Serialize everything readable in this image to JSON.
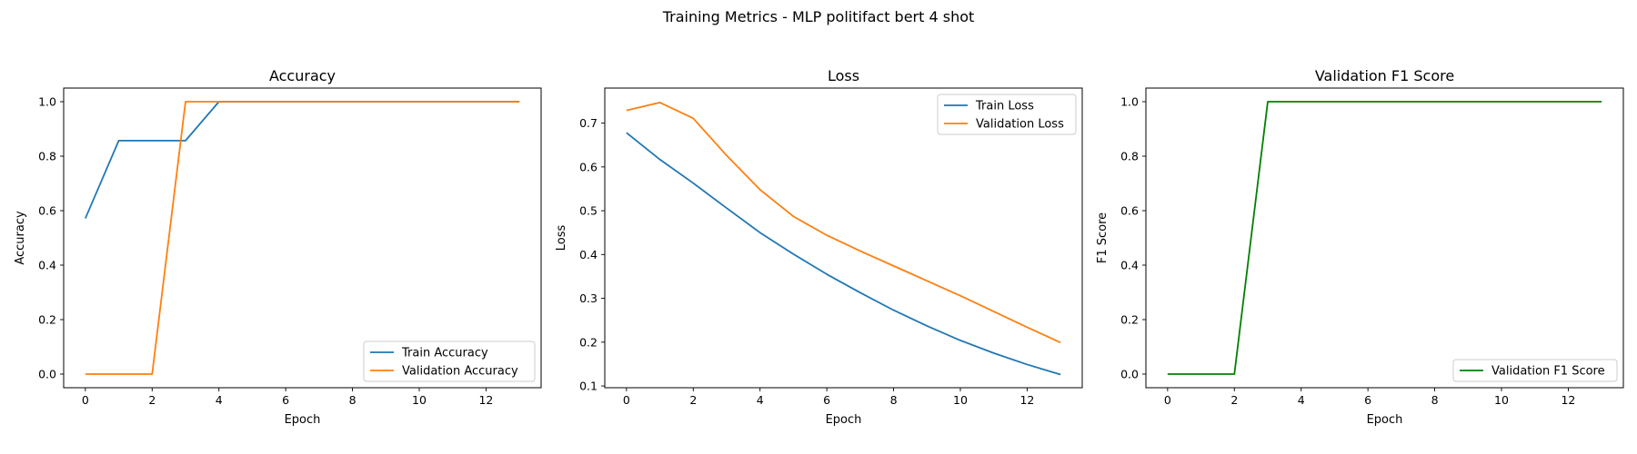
{
  "suptitle": "Training Metrics - MLP politifact bert 4 shot",
  "chart_data": [
    {
      "type": "line",
      "title": "Accuracy",
      "xlabel": "Epoch",
      "ylabel": "Accuracy",
      "x": [
        0,
        1,
        2,
        3,
        4,
        5,
        6,
        7,
        8,
        9,
        10,
        11,
        12,
        13
      ],
      "xlim": [
        -0.65,
        13.65
      ],
      "ylim": [
        -0.05,
        1.05
      ],
      "xticks": [
        0,
        2,
        4,
        6,
        8,
        10,
        12
      ],
      "yticks": [
        0.0,
        0.2,
        0.4,
        0.6,
        0.8,
        1.0
      ],
      "legend_loc": "lower right",
      "series": [
        {
          "name": "Train Accuracy",
          "color": "#1f77b4",
          "values": [
            0.5714,
            0.8571,
            0.8571,
            0.8571,
            1.0,
            1.0,
            1.0,
            1.0,
            1.0,
            1.0,
            1.0,
            1.0,
            1.0,
            1.0
          ]
        },
        {
          "name": "Validation Accuracy",
          "color": "#ff7f0e",
          "values": [
            0.0,
            0.0,
            0.0,
            1.0,
            1.0,
            1.0,
            1.0,
            1.0,
            1.0,
            1.0,
            1.0,
            1.0,
            1.0,
            1.0
          ]
        }
      ]
    },
    {
      "type": "line",
      "title": "Loss",
      "xlabel": "Epoch",
      "ylabel": "Loss",
      "x": [
        0,
        1,
        2,
        3,
        4,
        5,
        6,
        7,
        8,
        9,
        10,
        11,
        12,
        13
      ],
      "xlim": [
        -0.65,
        13.65
      ],
      "ylim": [
        0.096,
        0.78
      ],
      "xticks": [
        0,
        2,
        4,
        6,
        8,
        10,
        12
      ],
      "yticks": [
        0.1,
        0.2,
        0.3,
        0.4,
        0.5,
        0.6,
        0.7
      ],
      "legend_loc": "upper right",
      "series": [
        {
          "name": "Train Loss",
          "color": "#1f77b4",
          "values": [
            0.678,
            0.617,
            0.563,
            0.506,
            0.45,
            0.401,
            0.355,
            0.313,
            0.273,
            0.237,
            0.204,
            0.175,
            0.149,
            0.126
          ]
        },
        {
          "name": "Validation Loss",
          "color": "#ff7f0e",
          "values": [
            0.729,
            0.747,
            0.711,
            0.626,
            0.548,
            0.487,
            0.444,
            0.408,
            0.374,
            0.34,
            0.306,
            0.27,
            0.234,
            0.199
          ]
        }
      ]
    },
    {
      "type": "line",
      "title": "Validation F1 Score",
      "xlabel": "Epoch",
      "ylabel": "F1 Score",
      "x": [
        0,
        1,
        2,
        3,
        4,
        5,
        6,
        7,
        8,
        9,
        10,
        11,
        12,
        13
      ],
      "xlim": [
        -0.65,
        13.65
      ],
      "ylim": [
        -0.05,
        1.05
      ],
      "xticks": [
        0,
        2,
        4,
        6,
        8,
        10,
        12
      ],
      "yticks": [
        0.0,
        0.2,
        0.4,
        0.6,
        0.8,
        1.0
      ],
      "legend_loc": "lower right",
      "series": [
        {
          "name": "Validation F1 Score",
          "color": "#008000",
          "values": [
            0.0,
            0.0,
            0.0,
            1.0,
            1.0,
            1.0,
            1.0,
            1.0,
            1.0,
            1.0,
            1.0,
            1.0,
            1.0,
            1.0
          ]
        }
      ]
    }
  ]
}
